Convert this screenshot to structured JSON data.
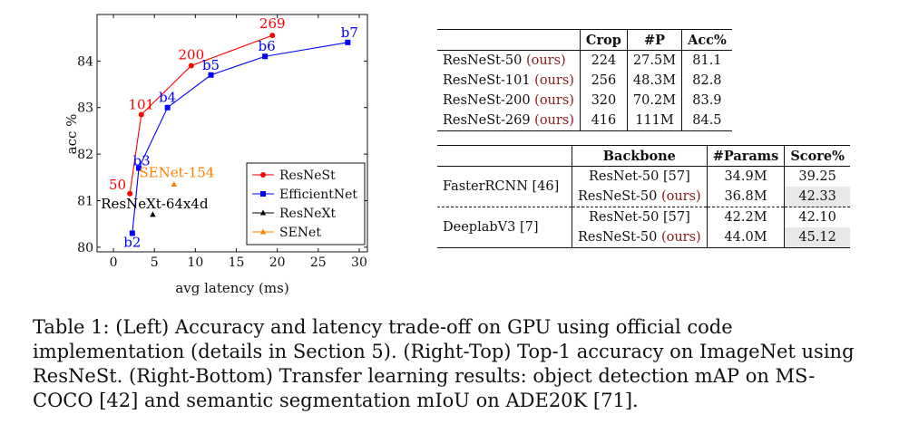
{
  "chart_data": {
    "type": "line",
    "xlabel": "avg latency (ms)",
    "ylabel": "acc %",
    "xlim": [
      -2,
      31
    ],
    "ylim": [
      79.9,
      85.0
    ],
    "xticks": [
      0,
      5,
      10,
      15,
      20,
      25,
      30
    ],
    "yticks": [
      80,
      81,
      82,
      83,
      84
    ],
    "grid": false,
    "legend_position": "bottom-right",
    "series": [
      {
        "name": "ResNeSt",
        "color": "#ff0000",
        "marker": "circle",
        "connected": true,
        "points": [
          {
            "x": 2.0,
            "y": 81.15,
            "label": "50"
          },
          {
            "x": 3.4,
            "y": 82.85,
            "label": "101"
          },
          {
            "x": 9.5,
            "y": 83.9,
            "label": "200"
          },
          {
            "x": 19.4,
            "y": 84.55,
            "label": "269"
          }
        ]
      },
      {
        "name": "EfficientNet",
        "color": "#0000ff",
        "marker": "square",
        "connected": true,
        "points": [
          {
            "x": 2.3,
            "y": 80.3,
            "label": "b2"
          },
          {
            "x": 3.1,
            "y": 81.7,
            "label": "b3"
          },
          {
            "x": 6.6,
            "y": 83.0,
            "label": "b4"
          },
          {
            "x": 11.9,
            "y": 83.7,
            "label": "b5"
          },
          {
            "x": 18.5,
            "y": 84.1,
            "label": "b6"
          },
          {
            "x": 28.6,
            "y": 84.4,
            "label": "b7"
          }
        ]
      },
      {
        "name": "ResNeXt",
        "color": "#000000",
        "marker": "triangle",
        "connected": false,
        "points": [
          {
            "x": 4.8,
            "y": 80.7,
            "label": "ResNeXt-64x4d"
          }
        ]
      },
      {
        "name": "SENet",
        "color": "#ff8000",
        "marker": "triangle",
        "connected": false,
        "points": [
          {
            "x": 7.4,
            "y": 81.35,
            "label": "SENet-154"
          }
        ]
      }
    ]
  },
  "accuracy_table": {
    "headers": [
      "",
      "Crop",
      "#P",
      "Acc%"
    ],
    "rows": [
      {
        "model": "ResNeSt-50",
        "ours": "(ours)",
        "crop": "224",
        "params": "27.5M",
        "acc": "81.1"
      },
      {
        "model": "ResNeSt-101",
        "ours": "(ours)",
        "crop": "256",
        "params": "48.3M",
        "acc": "82.8"
      },
      {
        "model": "ResNeSt-200",
        "ours": "(ours)",
        "crop": "320",
        "params": "70.2M",
        "acc": "83.9"
      },
      {
        "model": "ResNeSt-269",
        "ours": "(ours)",
        "crop": "416",
        "params": "111M",
        "acc": "84.5"
      }
    ]
  },
  "transfer_table": {
    "headers": [
      "",
      "Backbone",
      "#Params",
      "Score%"
    ],
    "groups": [
      {
        "task": "FasterRCNN [46]",
        "rows": [
          {
            "backbone": "ResNet-50 [57]",
            "ours": "",
            "params": "34.9M",
            "score": "39.25",
            "highlight": false
          },
          {
            "backbone": "ResNeSt-50",
            "ours": "(ours)",
            "params": "36.8M",
            "score": "42.33",
            "highlight": true
          }
        ]
      },
      {
        "task": "DeeplabV3 [7]",
        "rows": [
          {
            "backbone": "ResNet-50 [57]",
            "ours": "",
            "params": "42.2M",
            "score": "42.10",
            "highlight": false
          },
          {
            "backbone": "ResNeSt-50",
            "ours": "(ours)",
            "params": "44.0M",
            "score": "45.12",
            "highlight": true
          }
        ]
      }
    ]
  },
  "caption": "Table 1: (Left) Accuracy and latency trade-off on GPU using official code implementation (details in Section 5). (Right-Top) Top-1 accuracy on ImageNet using ResNeSt. (Right-Bottom) Transfer learning results: object detection mAP on MS-COCO [42] and semantic segmentation mIoU on ADE20K [71]."
}
